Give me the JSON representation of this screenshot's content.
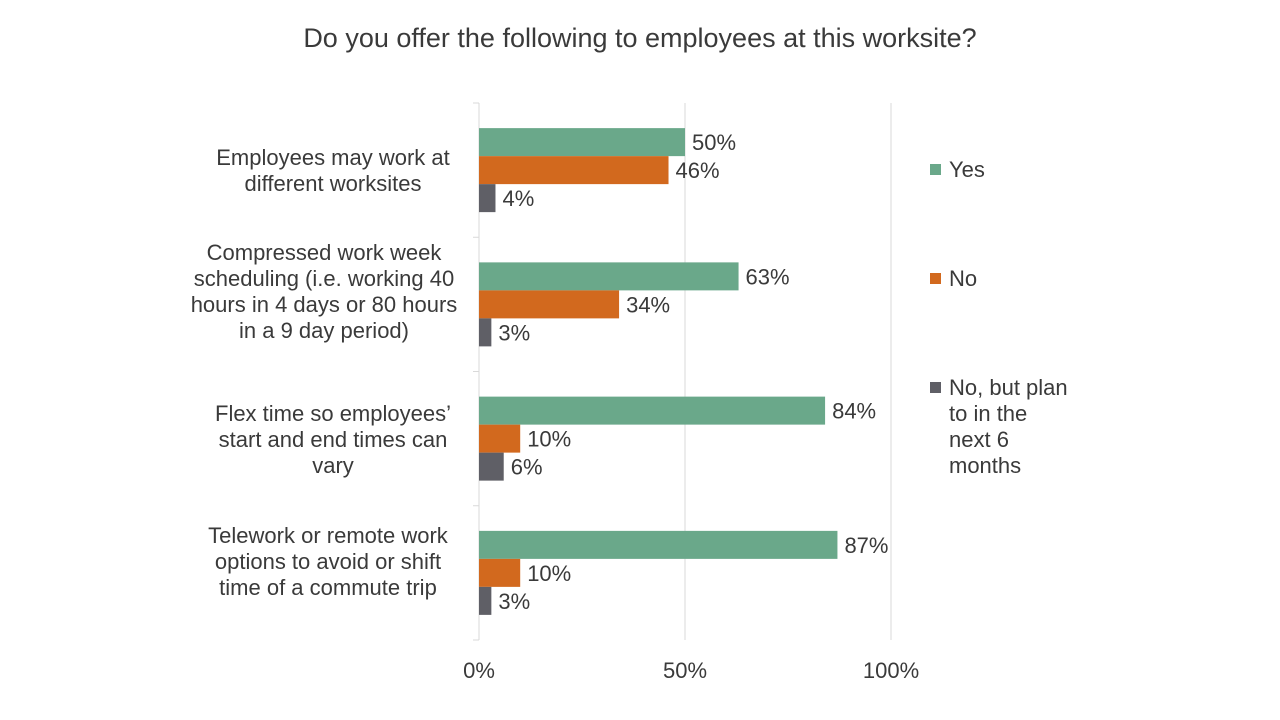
{
  "chart_data": {
    "type": "bar",
    "orientation": "horizontal",
    "title": "Do you offer the following to employees at this worksite?",
    "categories": [
      "Employees may work at different worksites",
      "Compressed work week scheduling (i.e. working 40 hours in 4 days or 80 hours in a 9 day period)",
      "Flex time so employees’ start and end times can vary",
      "Telework or remote work options to avoid or shift time of a commute trip"
    ],
    "series": [
      {
        "name": "Yes",
        "color": "#6aa88a",
        "values": [
          50,
          63,
          84,
          87
        ],
        "labels": [
          "50%",
          "63%",
          "84%",
          "87%"
        ]
      },
      {
        "name": "No",
        "color": "#d2691e",
        "values": [
          46,
          34,
          10,
          10
        ],
        "labels": [
          "46%",
          "34%",
          "10%",
          "10%"
        ]
      },
      {
        "name": "No, but plan to in the next 6 months",
        "color": "#5f5f66",
        "values": [
          4,
          3,
          6,
          3
        ],
        "labels": [
          "4%",
          "3%",
          "6%",
          "3%"
        ]
      }
    ],
    "xlim": [
      0,
      100
    ],
    "xticks": [
      0,
      50,
      100
    ],
    "xtick_labels": [
      "0%",
      "50%",
      "100%"
    ],
    "grid": true,
    "legend_position": "right"
  }
}
